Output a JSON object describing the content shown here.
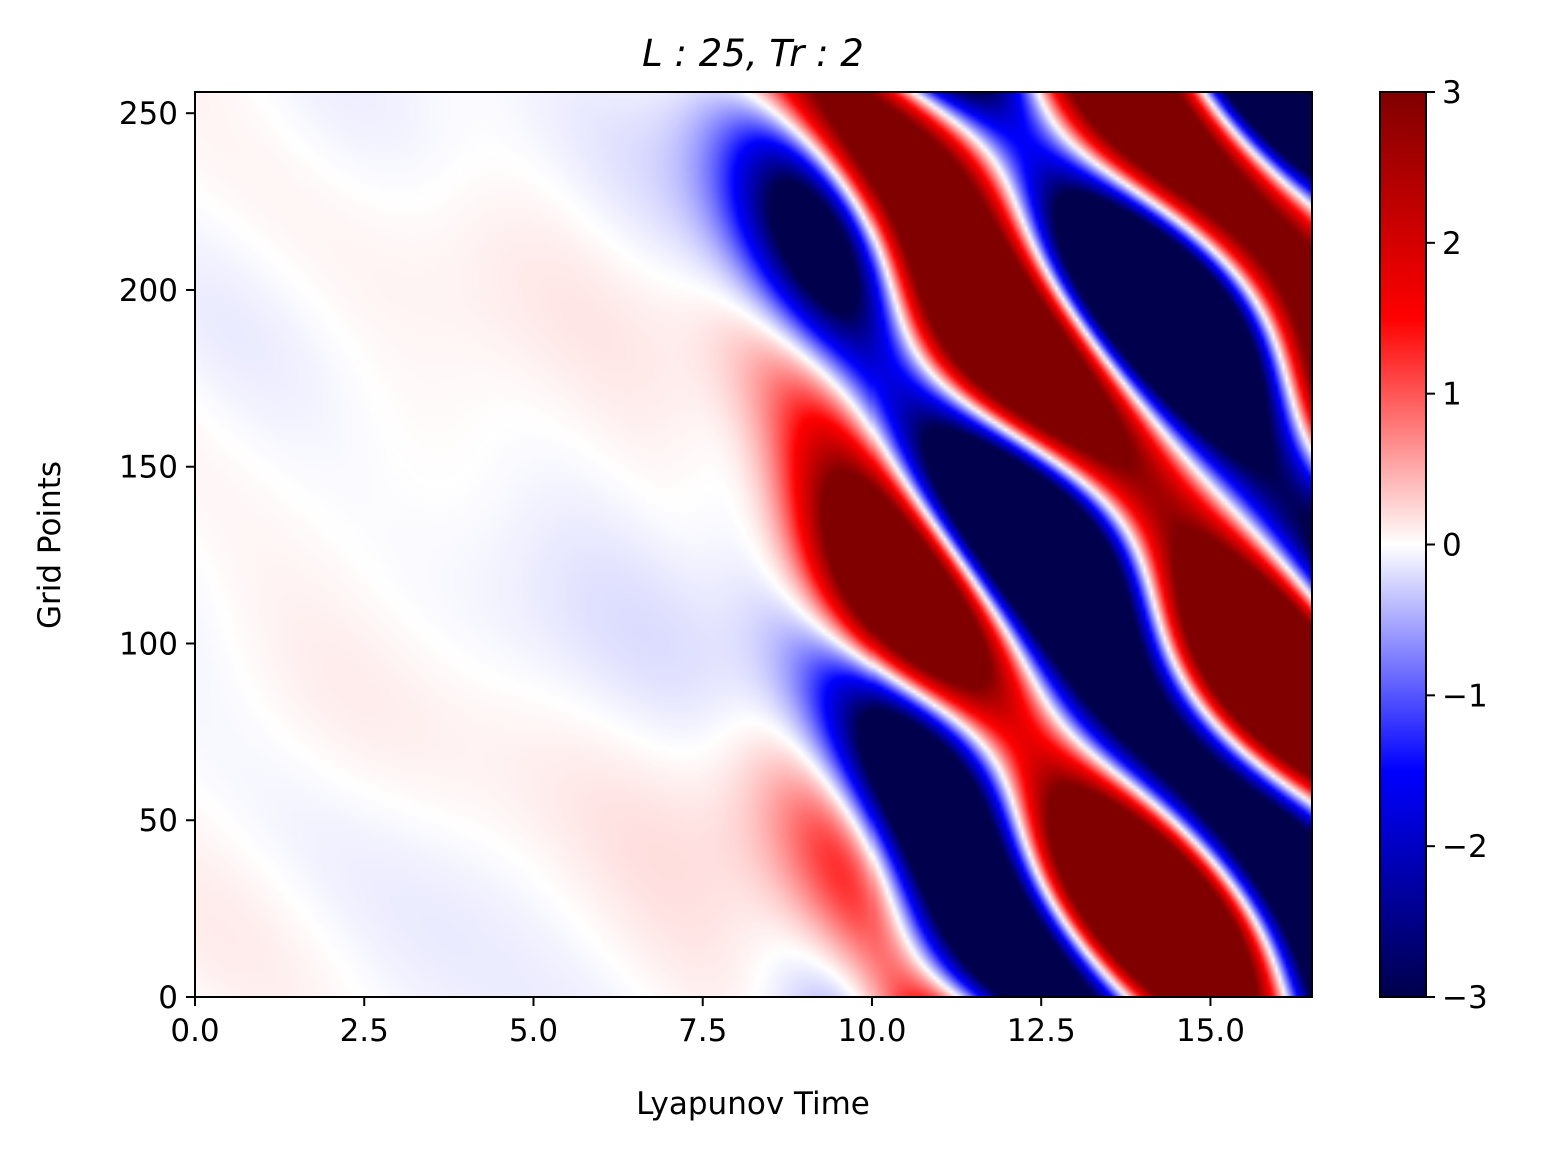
{
  "chart_data": {
    "type": "heatmap",
    "title": "L : 25, Tr : 2",
    "xlabel": "Lyapunov Time",
    "ylabel": "Grid Points",
    "xlim": [
      0,
      16.5
    ],
    "ylim": [
      0,
      256
    ],
    "x_ticks": [
      0,
      2.5,
      5,
      7.5,
      10,
      12.5,
      15
    ],
    "x_tick_labels": [
      "0.0",
      "2.5",
      "5.0",
      "7.5",
      "10.0",
      "12.5",
      "15.0"
    ],
    "y_ticks": [
      0,
      50,
      100,
      150,
      200,
      250
    ],
    "y_tick_labels": [
      "0",
      "50",
      "100",
      "150",
      "200",
      "250"
    ],
    "colorbar": {
      "min": -3,
      "max": 3,
      "ticks": [
        3,
        2,
        1,
        0,
        -1,
        -2,
        -3
      ],
      "tick_labels": [
        "3",
        "2",
        "1",
        "0",
        "−1",
        "−2",
        "−3"
      ],
      "colormap": "seismic",
      "colors": [
        "#00004c",
        "#0000ff",
        "#ffffff",
        "#ff0000",
        "#800000"
      ]
    },
    "grid": false,
    "description_values": {
      "x_range": [
        0,
        16.5
      ],
      "y_range": [
        0,
        256
      ],
      "value_range": [
        -3,
        3
      ]
    }
  }
}
